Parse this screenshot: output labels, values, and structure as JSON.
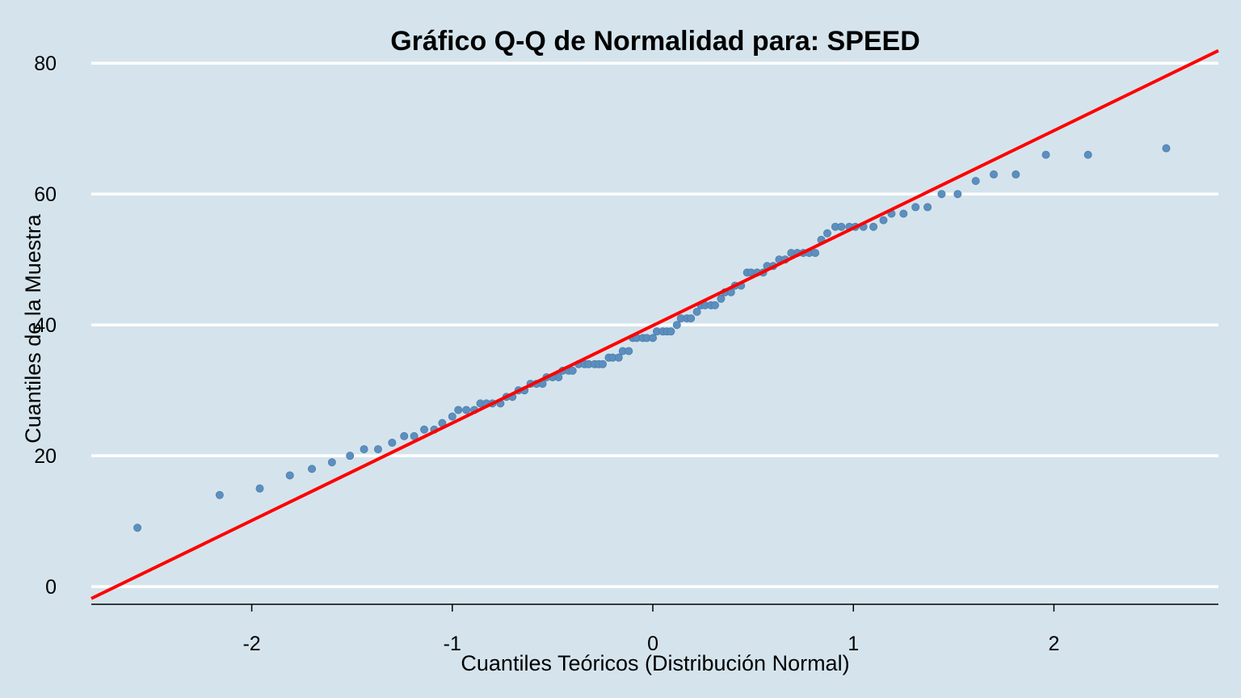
{
  "chart_data": {
    "type": "scatter",
    "title": "Gráfico Q-Q de Normalidad para: SPEED",
    "xlabel": "Cuantiles Teóricos (Distribución Normal)",
    "ylabel": "Cuantiles de la Muestra",
    "xlim": [
      -2.8,
      2.82
    ],
    "ylim": [
      -2.7,
      82.5
    ],
    "xticks": [
      -2,
      -1,
      0,
      1,
      2
    ],
    "yticks": [
      0,
      20,
      40,
      60,
      80
    ],
    "grid": "horizontal",
    "legend": "none",
    "reference_line": {
      "intercept": 39.9,
      "slope": 14.9,
      "color": "#ff0000"
    },
    "colors": {
      "background": "#d5e4ec",
      "points": "#5b8fbf",
      "grid": "#ffffff",
      "line": "#ff0000"
    },
    "points": [
      [
        -2.57,
        9
      ],
      [
        -2.16,
        14
      ],
      [
        -1.96,
        15
      ],
      [
        -1.81,
        17
      ],
      [
        -1.7,
        18
      ],
      [
        -1.6,
        19
      ],
      [
        -1.51,
        20
      ],
      [
        -1.44,
        21
      ],
      [
        -1.37,
        21
      ],
      [
        -1.3,
        22
      ],
      [
        -1.24,
        23
      ],
      [
        -1.19,
        23
      ],
      [
        -1.14,
        24
      ],
      [
        -1.09,
        24
      ],
      [
        -1.05,
        25
      ],
      [
        -1.0,
        26
      ],
      [
        -0.97,
        27
      ],
      [
        -0.93,
        27
      ],
      [
        -0.89,
        27
      ],
      [
        -0.86,
        28
      ],
      [
        -0.83,
        28
      ],
      [
        -0.8,
        28
      ],
      [
        -0.76,
        28
      ],
      [
        -0.73,
        29
      ],
      [
        -0.7,
        29
      ],
      [
        -0.67,
        30
      ],
      [
        -0.64,
        30
      ],
      [
        -0.61,
        31
      ],
      [
        -0.58,
        31
      ],
      [
        -0.55,
        31
      ],
      [
        -0.53,
        32
      ],
      [
        -0.5,
        32
      ],
      [
        -0.47,
        32
      ],
      [
        -0.45,
        33
      ],
      [
        -0.42,
        33
      ],
      [
        -0.4,
        33
      ],
      [
        -0.37,
        34
      ],
      [
        -0.34,
        34
      ],
      [
        -0.32,
        34
      ],
      [
        -0.29,
        34
      ],
      [
        -0.27,
        34
      ],
      [
        -0.25,
        34
      ],
      [
        -0.22,
        35
      ],
      [
        -0.2,
        35
      ],
      [
        -0.17,
        35
      ],
      [
        -0.15,
        36
      ],
      [
        -0.12,
        36
      ],
      [
        -0.1,
        38
      ],
      [
        -0.08,
        38
      ],
      [
        -0.05,
        38
      ],
      [
        -0.03,
        38
      ],
      [
        0.0,
        38
      ],
      [
        0.02,
        39
      ],
      [
        0.05,
        39
      ],
      [
        0.07,
        39
      ],
      [
        0.09,
        39
      ],
      [
        0.12,
        40
      ],
      [
        0.14,
        41
      ],
      [
        0.17,
        41
      ],
      [
        0.19,
        41
      ],
      [
        0.22,
        42
      ],
      [
        0.24,
        43
      ],
      [
        0.26,
        43
      ],
      [
        0.29,
        43
      ],
      [
        0.31,
        43
      ],
      [
        0.34,
        44
      ],
      [
        0.36,
        45
      ],
      [
        0.39,
        45
      ],
      [
        0.41,
        46
      ],
      [
        0.44,
        46
      ],
      [
        0.47,
        48
      ],
      [
        0.49,
        48
      ],
      [
        0.52,
        48
      ],
      [
        0.55,
        48
      ],
      [
        0.57,
        49
      ],
      [
        0.6,
        49
      ],
      [
        0.63,
        50
      ],
      [
        0.66,
        50
      ],
      [
        0.69,
        51
      ],
      [
        0.72,
        51
      ],
      [
        0.75,
        51
      ],
      [
        0.78,
        51
      ],
      [
        0.81,
        51
      ],
      [
        0.84,
        53
      ],
      [
        0.87,
        54
      ],
      [
        0.91,
        55
      ],
      [
        0.94,
        55
      ],
      [
        0.98,
        55
      ],
      [
        1.01,
        55
      ],
      [
        1.05,
        55
      ],
      [
        1.1,
        55
      ],
      [
        1.15,
        56
      ],
      [
        1.19,
        57
      ],
      [
        1.25,
        57
      ],
      [
        1.31,
        58
      ],
      [
        1.37,
        58
      ],
      [
        1.44,
        60
      ],
      [
        1.52,
        60
      ],
      [
        1.61,
        62
      ],
      [
        1.7,
        63
      ],
      [
        1.81,
        63
      ],
      [
        1.96,
        66
      ],
      [
        2.17,
        66
      ],
      [
        2.56,
        67
      ]
    ]
  }
}
